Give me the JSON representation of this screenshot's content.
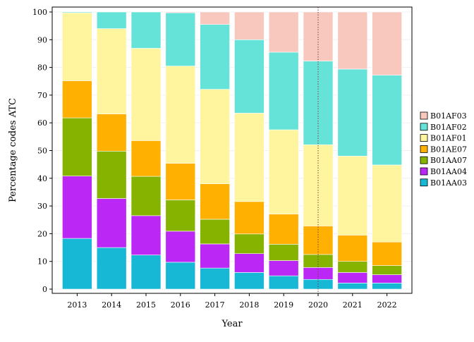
{
  "chart_data": {
    "type": "bar",
    "stacked": true,
    "xlabel": "Year",
    "ylabel": "Percentage codes ATC",
    "ylim": [
      0,
      100
    ],
    "yticks": [
      0,
      10,
      20,
      30,
      40,
      50,
      60,
      70,
      80,
      90,
      100
    ],
    "categories": [
      "2013",
      "2014",
      "2015",
      "2016",
      "2017",
      "2018",
      "2019",
      "2020",
      "2021",
      "2022"
    ],
    "reference_line_x": "2020",
    "legend_position": "right",
    "grid": true,
    "series": [
      {
        "name": "B01AA03",
        "color": "#17b8d6",
        "values": [
          18.3,
          15.0,
          12.3,
          9.7,
          7.6,
          6.0,
          4.8,
          3.5,
          2.2,
          2.2
        ]
      },
      {
        "name": "B01AA04",
        "color": "#bb27f5",
        "values": [
          22.5,
          17.7,
          14.2,
          11.2,
          8.7,
          6.8,
          5.5,
          4.3,
          3.8,
          3.0
        ]
      },
      {
        "name": "B01AA07",
        "color": "#86b300",
        "values": [
          21.0,
          17.1,
          14.2,
          11.3,
          8.9,
          7.1,
          5.9,
          4.7,
          4.0,
          3.3
        ]
      },
      {
        "name": "B01AE07",
        "color": "#ffb000",
        "values": [
          13.4,
          13.4,
          12.9,
          13.2,
          12.8,
          11.7,
          10.9,
          10.3,
          9.5,
          8.5
        ]
      },
      {
        "name": "B01AF01",
        "color": "#fff59f",
        "values": [
          24.5,
          30.8,
          33.3,
          35.1,
          34.1,
          31.9,
          30.4,
          29.3,
          28.5,
          27.8
        ]
      },
      {
        "name": "B01AF02",
        "color": "#66e3d8",
        "values": [
          0.3,
          6.0,
          13.1,
          19.2,
          23.4,
          26.5,
          28.0,
          30.2,
          31.4,
          32.4
        ]
      },
      {
        "name": "B01AF03",
        "color": "#f8c8be",
        "values": [
          0.0,
          0.0,
          0.0,
          0.3,
          4.5,
          10.0,
          14.5,
          17.7,
          20.6,
          22.8
        ]
      }
    ]
  }
}
